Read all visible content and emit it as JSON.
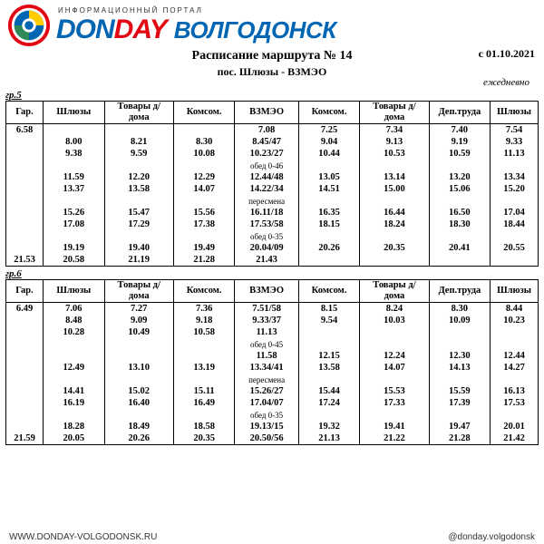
{
  "header": {
    "tagline": "ИНФОРМАЦИОННЫЙ ПОРТАЛ",
    "brand_don": "DON",
    "brand_day": "DAY",
    "city": "ВОЛГОДОНСК",
    "date": "с 01.10.2021",
    "logo_colors": {
      "outer": "#e30613",
      "inner": "#0066b3",
      "accent": "#ffcc00",
      "green": "#2e8b57"
    }
  },
  "title": "Расписание маршрута № 14",
  "subtitle": "пос. Шлюзы - ВЗМЭО",
  "daily": "ежедневно",
  "columns": [
    "Гар.",
    "Шлюзы",
    "Товары д/ дома",
    "Комсом.",
    "ВЗМЭО",
    "Комсом.",
    "Товары д/ дома",
    "Деп.труда",
    "Шлюзы"
  ],
  "groups": [
    {
      "label": "гр.5",
      "rows": [
        [
          "6.58",
          "",
          "",
          "",
          "7.08",
          "7.25",
          "7.34",
          "7.40",
          "7.54"
        ],
        [
          "",
          "8.00",
          "8.21",
          "8.30",
          "8.45/47",
          "9.04",
          "9.13",
          "9.19",
          "9.33"
        ],
        [
          "",
          "9.38",
          "9.59",
          "10.08",
          "10.23/27",
          "10.44",
          "10.53",
          "10.59",
          "11.13"
        ],
        [
          "",
          "",
          "",
          "",
          "обед 0-46",
          "",
          "",
          "",
          ""
        ],
        [
          "",
          "11.59",
          "12.20",
          "12.29",
          "12.44/48",
          "13.05",
          "13.14",
          "13.20",
          "13.34"
        ],
        [
          "",
          "13.37",
          "13.58",
          "14.07",
          "14.22/34",
          "14.51",
          "15.00",
          "15.06",
          "15.20"
        ],
        [
          "",
          "",
          "",
          "",
          "пересмена",
          "",
          "",
          "",
          ""
        ],
        [
          "",
          "15.26",
          "15.47",
          "15.56",
          "16.11/18",
          "16.35",
          "16.44",
          "16.50",
          "17.04"
        ],
        [
          "",
          "17.08",
          "17.29",
          "17.38",
          "17.53/58",
          "18.15",
          "18.24",
          "18.30",
          "18.44"
        ],
        [
          "",
          "",
          "",
          "",
          "обед 0-35",
          "",
          "",
          "",
          ""
        ],
        [
          "",
          "19.19",
          "19.40",
          "19.49",
          "20.04/09",
          "20.26",
          "20.35",
          "20.41",
          "20.55"
        ],
        [
          "21.53",
          "20.58",
          "21.19",
          "21.28",
          "21.43",
          "",
          "",
          "",
          ""
        ]
      ]
    },
    {
      "label": "гр.6",
      "rows": [
        [
          "6.49",
          "7.06",
          "7.27",
          "7.36",
          "7.51/58",
          "8.15",
          "8.24",
          "8.30",
          "8.44"
        ],
        [
          "",
          "8.48",
          "9.09",
          "9.18",
          "9.33/37",
          "9.54",
          "10.03",
          "10.09",
          "10.23"
        ],
        [
          "",
          "10.28",
          "10.49",
          "10.58",
          "11.13",
          "",
          "",
          "",
          ""
        ],
        [
          "",
          "",
          "",
          "",
          "обед 0-45",
          "",
          "",
          "",
          ""
        ],
        [
          "",
          "",
          "",
          "",
          "11.58",
          "12.15",
          "12.24",
          "12.30",
          "12.44"
        ],
        [
          "",
          "12.49",
          "13.10",
          "13.19",
          "13.34/41",
          "13.58",
          "14.07",
          "14.13",
          "14.27"
        ],
        [
          "",
          "",
          "",
          "",
          "пересмена",
          "",
          "",
          "",
          ""
        ],
        [
          "",
          "14.41",
          "15.02",
          "15.11",
          "15.26/27",
          "15.44",
          "15.53",
          "15.59",
          "16.13"
        ],
        [
          "",
          "16.19",
          "16.40",
          "16.49",
          "17.04/07",
          "17.24",
          "17.33",
          "17.39",
          "17.53"
        ],
        [
          "",
          "",
          "",
          "",
          "обед 0-35",
          "",
          "",
          "",
          ""
        ],
        [
          "",
          "18.28",
          "18.49",
          "18.58",
          "19.13/15",
          "19.32",
          "19.41",
          "19.47",
          "20.01"
        ],
        [
          "21.59",
          "20.05",
          "20.26",
          "20.35",
          "20.50/56",
          "21.13",
          "21.22",
          "21.28",
          "21.42"
        ]
      ]
    }
  ],
  "footer": {
    "url": "WWW.DONDAY-VOLGODONSK.RU",
    "social": "@donday.volgodonsk"
  }
}
